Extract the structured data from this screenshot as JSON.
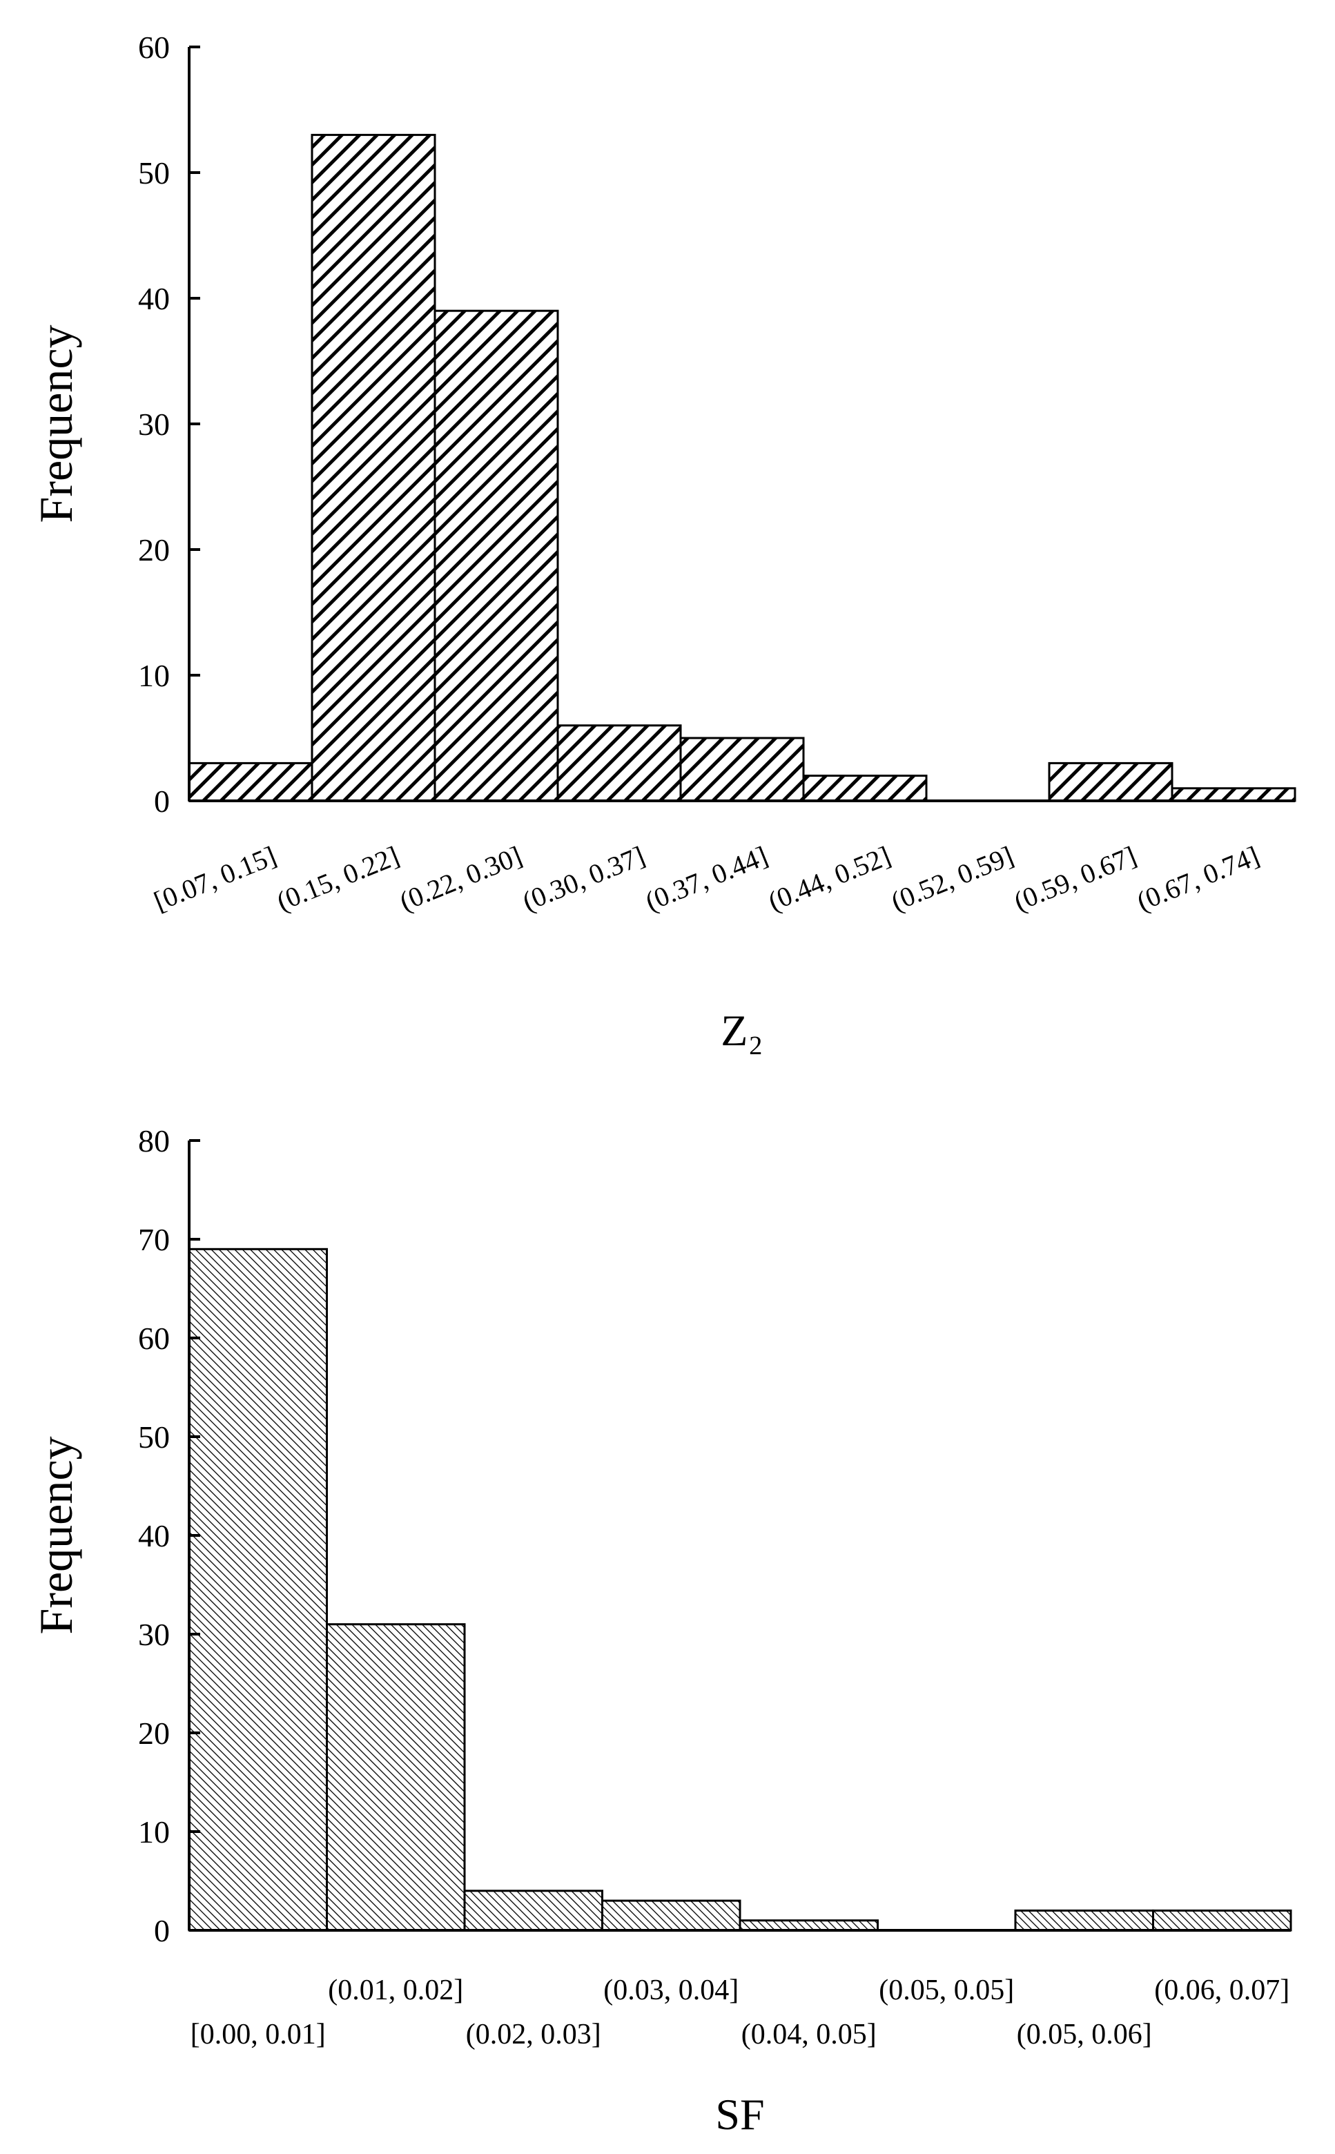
{
  "chart_data": [
    {
      "type": "bar",
      "x_label": "Z₂",
      "y_label": "Frequency",
      "categories": [
        "[0.07, 0.15]",
        "(0.15, 0.22]",
        "(0.22, 0.30]",
        "(0.30, 0.37]",
        "(0.37, 0.44]",
        "(0.44, 0.52]",
        "(0.52, 0.59]",
        "(0.59, 0.67]",
        "(0.67, 0.74]"
      ],
      "values": [
        3,
        53,
        39,
        6,
        5,
        2,
        0,
        3,
        1
      ],
      "color": "#000000",
      "ylim": [
        0,
        60
      ],
      "yticks": [
        0,
        10,
        20,
        30,
        40,
        50,
        60
      ]
    },
    {
      "type": "bar",
      "x_label": "SF",
      "y_label": "Frequency",
      "categories": [
        "[0.00, 0.01]",
        "(0.01, 0.02]",
        "(0.02, 0.03]",
        "(0.03, 0.04]",
        "(0.04, 0.05]",
        "(0.05, 0.05]",
        "(0.05, 0.06]",
        "(0.06, 0.07]"
      ],
      "values": [
        69,
        31,
        4,
        3,
        1,
        0,
        2,
        2
      ],
      "color": "#000000",
      "ylim": [
        0,
        80
      ],
      "yticks": [
        0,
        10,
        20,
        30,
        40,
        50,
        60,
        70,
        80
      ]
    }
  ]
}
